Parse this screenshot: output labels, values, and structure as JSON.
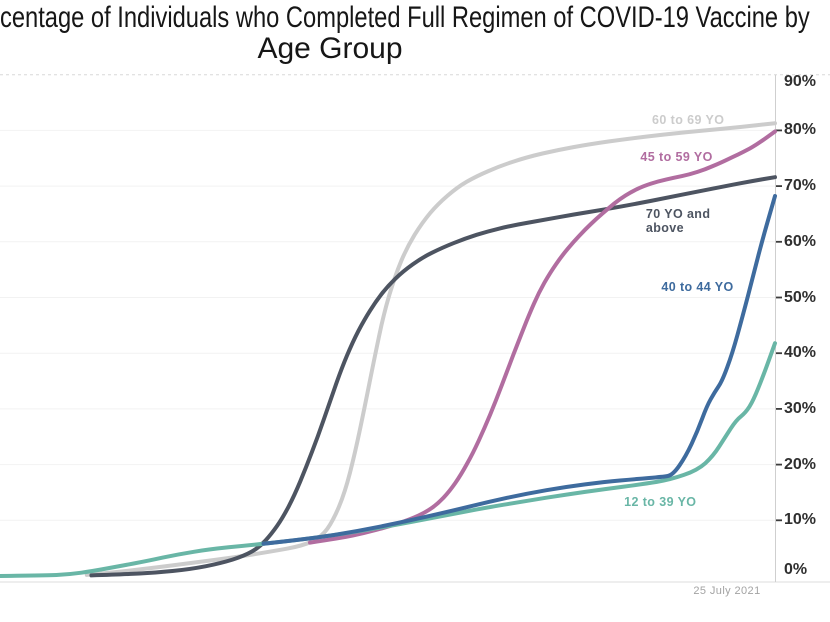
{
  "title": {
    "line1": "centage of Individuals who Completed Full Regimen of COVID-19 Vaccine by",
    "line2": "Age Group"
  },
  "footnote": {
    "date_label": "25 July 2021"
  },
  "chart_data": {
    "type": "line",
    "title": "centage of Individuals who Completed Full Regimen of COVID-19 Vaccine by Age Group",
    "xlabel": "",
    "ylabel": "",
    "x_scale": "0-1 fraction of plot width (x tick labels not visible)",
    "x_end_annotation": "25 July 2021",
    "ylim": [
      0,
      90
    ],
    "y_unit": "%",
    "y_ticks": [
      {
        "value": 90,
        "label": "90%"
      },
      {
        "value": 80,
        "label": "80%"
      },
      {
        "value": 70,
        "label": "70%"
      },
      {
        "value": 60,
        "label": "60%"
      },
      {
        "value": 50,
        "label": "50%"
      },
      {
        "value": 40,
        "label": "40%"
      },
      {
        "value": 30,
        "label": "30%"
      },
      {
        "value": 20,
        "label": "20%"
      },
      {
        "value": 10,
        "label": "10%"
      },
      {
        "value": 0,
        "label": "0%"
      }
    ],
    "grid": "horizontal",
    "legend_position": "inline-labels",
    "axis_colors": {
      "gridline": "#f2f2f2",
      "axis_line": "#cfcfcf",
      "top_dashed_line": "#d8d8d8",
      "tick": "#3c3c3c"
    },
    "series": [
      {
        "name": "60 to 69 YO",
        "color": "#cccccc",
        "label": "60 to 69 YO",
        "label_pos": [
          0.888,
          81.8
        ],
        "end_value_pct": 81.3,
        "points": [
          [
            0.112,
            0.2
          ],
          [
            0.15,
            0.7
          ],
          [
            0.2,
            1.5
          ],
          [
            0.25,
            2.4
          ],
          [
            0.3,
            3.3
          ],
          [
            0.35,
            4.4
          ],
          [
            0.39,
            5.4
          ],
          [
            0.415,
            7.0
          ],
          [
            0.43,
            10.0
          ],
          [
            0.445,
            15.0
          ],
          [
            0.458,
            22.0
          ],
          [
            0.47,
            30.0
          ],
          [
            0.483,
            39.0
          ],
          [
            0.495,
            47.0
          ],
          [
            0.51,
            54.0
          ],
          [
            0.525,
            59.0
          ],
          [
            0.545,
            63.5
          ],
          [
            0.565,
            66.8
          ],
          [
            0.59,
            69.8
          ],
          [
            0.615,
            71.8
          ],
          [
            0.645,
            73.6
          ],
          [
            0.68,
            75.2
          ],
          [
            0.72,
            76.5
          ],
          [
            0.76,
            77.5
          ],
          [
            0.81,
            78.5
          ],
          [
            0.86,
            79.3
          ],
          [
            0.91,
            80.0
          ],
          [
            0.955,
            80.6
          ],
          [
            1.0,
            81.3
          ]
        ]
      },
      {
        "name": "45 to 59 YO",
        "color": "#b16da0",
        "label": "45 to 59 YO",
        "label_pos": [
          0.873,
          75.2
        ],
        "end_value_pct": 79.8,
        "points": [
          [
            0.4,
            6.0
          ],
          [
            0.44,
            6.8
          ],
          [
            0.47,
            7.7
          ],
          [
            0.5,
            8.8
          ],
          [
            0.53,
            10.2
          ],
          [
            0.55,
            11.5
          ],
          [
            0.565,
            13.0
          ],
          [
            0.58,
            15.2
          ],
          [
            0.595,
            18.2
          ],
          [
            0.61,
            22.0
          ],
          [
            0.625,
            26.5
          ],
          [
            0.64,
            31.5
          ],
          [
            0.655,
            37.0
          ],
          [
            0.67,
            42.5
          ],
          [
            0.683,
            47.0
          ],
          [
            0.695,
            50.8
          ],
          [
            0.71,
            54.5
          ],
          [
            0.725,
            57.5
          ],
          [
            0.74,
            60.0
          ],
          [
            0.755,
            62.2
          ],
          [
            0.77,
            64.2
          ],
          [
            0.785,
            66.0
          ],
          [
            0.8,
            67.7
          ],
          [
            0.815,
            69.0
          ],
          [
            0.83,
            70.0
          ],
          [
            0.85,
            70.9
          ],
          [
            0.87,
            71.5
          ],
          [
            0.89,
            72.1
          ],
          [
            0.91,
            73.0
          ],
          [
            0.93,
            74.2
          ],
          [
            0.945,
            75.2
          ],
          [
            0.96,
            76.2
          ],
          [
            0.975,
            77.3
          ],
          [
            1.0,
            79.8
          ]
        ]
      },
      {
        "name": "70 YO and above",
        "color": "#4d5461",
        "label": "70 YO and\nabove",
        "label_pos": [
          0.875,
          63.8
        ],
        "label_align": "left",
        "end_value_pct": 71.6,
        "points": [
          [
            0.118,
            0.1
          ],
          [
            0.16,
            0.3
          ],
          [
            0.2,
            0.6
          ],
          [
            0.245,
            1.2
          ],
          [
            0.285,
            2.3
          ],
          [
            0.315,
            3.6
          ],
          [
            0.335,
            5.2
          ],
          [
            0.35,
            7.5
          ],
          [
            0.365,
            10.5
          ],
          [
            0.38,
            14.5
          ],
          [
            0.395,
            19.5
          ],
          [
            0.41,
            25.0
          ],
          [
            0.425,
            31.0
          ],
          [
            0.44,
            37.0
          ],
          [
            0.455,
            42.0
          ],
          [
            0.47,
            46.0
          ],
          [
            0.485,
            49.3
          ],
          [
            0.5,
            52.0
          ],
          [
            0.52,
            54.7
          ],
          [
            0.545,
            57.2
          ],
          [
            0.57,
            58.9
          ],
          [
            0.6,
            60.6
          ],
          [
            0.63,
            61.9
          ],
          [
            0.66,
            62.9
          ],
          [
            0.7,
            63.9
          ],
          [
            0.74,
            64.9
          ],
          [
            0.78,
            65.8
          ],
          [
            0.82,
            66.8
          ],
          [
            0.86,
            67.9
          ],
          [
            0.9,
            69.0
          ],
          [
            0.94,
            70.1
          ],
          [
            0.97,
            70.9
          ],
          [
            1.0,
            71.6
          ]
        ]
      },
      {
        "name": "40 to 44 YO",
        "color": "#3e6b9e",
        "label": "40 to 44 YO",
        "label_pos": [
          0.9,
          51.8
        ],
        "end_value_pct": 68.2,
        "points": [
          [
            0.34,
            5.8
          ],
          [
            0.4,
            6.7
          ],
          [
            0.46,
            8.0
          ],
          [
            0.52,
            9.7
          ],
          [
            0.58,
            11.6
          ],
          [
            0.63,
            13.3
          ],
          [
            0.68,
            14.8
          ],
          [
            0.73,
            16.0
          ],
          [
            0.78,
            16.9
          ],
          [
            0.82,
            17.4
          ],
          [
            0.855,
            17.8
          ],
          [
            0.868,
            18.1
          ],
          [
            0.885,
            21.5
          ],
          [
            0.9,
            26.0
          ],
          [
            0.912,
            30.5
          ],
          [
            0.922,
            33.0
          ],
          [
            0.932,
            35.0
          ],
          [
            0.945,
            40.0
          ],
          [
            0.958,
            46.5
          ],
          [
            0.972,
            54.0
          ],
          [
            0.985,
            61.0
          ],
          [
            1.0,
            68.2
          ]
        ]
      },
      {
        "name": "12 to 39 YO",
        "color": "#69b6a6",
        "label": "12 to 39 YO",
        "label_pos": [
          0.852,
          13.2
        ],
        "end_value_pct": 41.8,
        "points": [
          [
            0.0,
            0.0
          ],
          [
            0.06,
            0.1
          ],
          [
            0.09,
            0.3
          ],
          [
            0.12,
            0.9
          ],
          [
            0.155,
            1.8
          ],
          [
            0.19,
            2.7
          ],
          [
            0.23,
            3.9
          ],
          [
            0.27,
            4.8
          ],
          [
            0.32,
            5.5
          ],
          [
            0.38,
            6.4
          ],
          [
            0.44,
            7.5
          ],
          [
            0.5,
            8.9
          ],
          [
            0.56,
            10.5
          ],
          [
            0.62,
            12.1
          ],
          [
            0.68,
            13.5
          ],
          [
            0.73,
            14.6
          ],
          [
            0.78,
            15.6
          ],
          [
            0.83,
            16.5
          ],
          [
            0.865,
            17.3
          ],
          [
            0.9,
            19.0
          ],
          [
            0.92,
            21.5
          ],
          [
            0.936,
            25.0
          ],
          [
            0.95,
            28.0
          ],
          [
            0.962,
            29.3
          ],
          [
            0.972,
            31.5
          ],
          [
            0.985,
            36.0
          ],
          [
            1.0,
            41.8
          ]
        ]
      }
    ],
    "draw_order": [
      0,
      2,
      1,
      4,
      3
    ]
  }
}
